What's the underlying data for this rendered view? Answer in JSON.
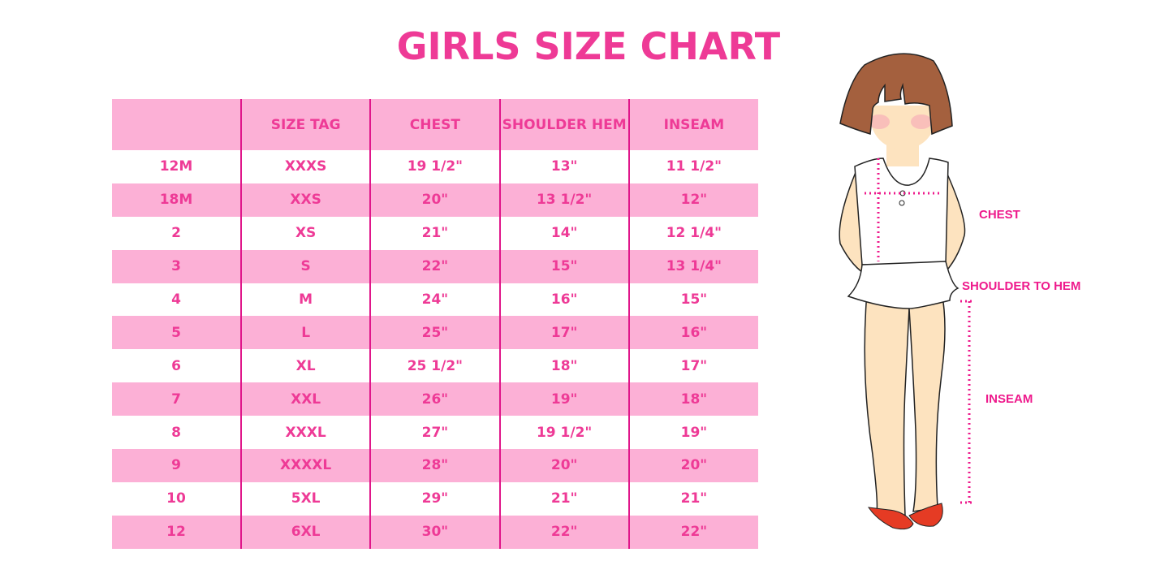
{
  "title": "GIRLS SIZE CHART",
  "table": {
    "headers": [
      "",
      "SIZE TAG",
      "CHEST",
      "SHOULDER HEM",
      "INSEAM"
    ],
    "rows": [
      [
        "12M",
        "XXXS",
        "19 1/2\"",
        "13\"",
        "11 1/2\""
      ],
      [
        "18M",
        "XXS",
        "20\"",
        "13 1/2\"",
        "12\""
      ],
      [
        "2",
        "XS",
        "21\"",
        "14\"",
        "12 1/4\""
      ],
      [
        "3",
        "S",
        "22\"",
        "15\"",
        "13 1/4\""
      ],
      [
        "4",
        "M",
        "24\"",
        "16\"",
        "15\""
      ],
      [
        "5",
        "L",
        "25\"",
        "17\"",
        "16\""
      ],
      [
        "6",
        "XL",
        "25 1/2\"",
        "18\"",
        "17\""
      ],
      [
        "7",
        "XXL",
        "26\"",
        "19\"",
        "18\""
      ],
      [
        "8",
        "XXXL",
        "27\"",
        "19 1/2\"",
        "19\""
      ],
      [
        "9",
        "XXXXL",
        "28\"",
        "20\"",
        "20\""
      ],
      [
        "10",
        "5XL",
        "29\"",
        "21\"",
        "21\""
      ],
      [
        "12",
        "6XL",
        "30\"",
        "22\"",
        "22\""
      ]
    ]
  },
  "illustration": {
    "labels": {
      "chest": "CHEST",
      "shoulder_to_hem": "SHOULDER TO HEM",
      "inseam": "INSEAM"
    }
  },
  "colors": {
    "accent": "#ee3a96",
    "row_fill": "#fcb0d6",
    "divider": "#e0168a"
  }
}
